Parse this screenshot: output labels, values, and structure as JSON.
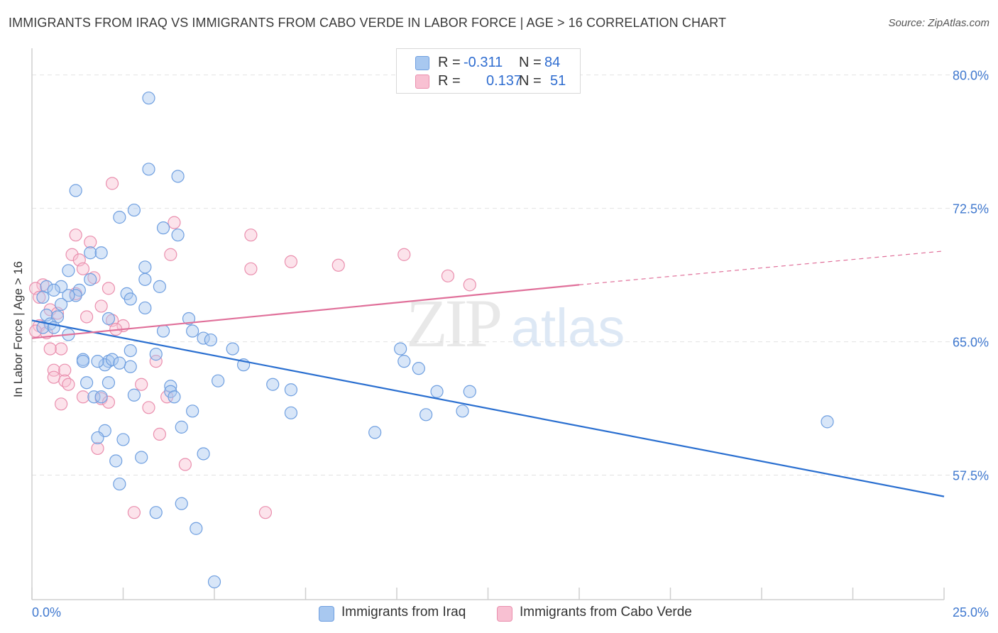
{
  "title": "IMMIGRANTS FROM IRAQ VS IMMIGRANTS FROM CABO VERDE IN LABOR FORCE | AGE > 16 CORRELATION CHART",
  "source": "Source: ZipAtlas.com",
  "watermark": {
    "zip": "ZIP",
    "atlas": "atlas"
  },
  "legend": {
    "rows": [
      {
        "r_label": "R =",
        "r_value": "-0.311",
        "n_label": "N =",
        "n_value": "84",
        "color": "#a8c8f0",
        "border": "#6f9fe0"
      },
      {
        "r_label": "R =",
        "r_value": "0.137",
        "n_label": "N =",
        "n_value": "51",
        "color": "#f8c0d2",
        "border": "#ea8fae"
      }
    ]
  },
  "bottom_legend": {
    "iraq": "Immigrants from Iraq",
    "cabo": "Immigrants from Cabo Verde"
  },
  "chart_data": {
    "type": "scatter",
    "title": "IMMIGRANTS FROM IRAQ VS IMMIGRANTS FROM CABO VERDE IN LABOR FORCE | AGE > 16 CORRELATION CHART",
    "xlabel": "",
    "ylabel": "In Labor Force | Age > 16",
    "xlim": [
      0,
      25
    ],
    "ylim": [
      50.5,
      81.5
    ],
    "x_tick_labels": [
      "0.0%",
      "25.0%"
    ],
    "y_ticks": [
      57.5,
      65.0,
      72.5,
      80.0
    ],
    "y_tick_labels": [
      "57.5%",
      "65.0%",
      "72.5%",
      "80.0%"
    ],
    "grid": true,
    "legend_position": "top-center",
    "colors": {
      "iraq_fill": "#a8c8f0",
      "iraq_stroke": "#6f9fe0",
      "iraq_line": "#2a6fd0",
      "cabo_fill": "#f8c0d2",
      "cabo_stroke": "#ea8fae",
      "cabo_line": "#e0709a"
    },
    "series": [
      {
        "name": "Immigrants from Iraq",
        "trend": {
          "x": [
            0,
            25
          ],
          "y": [
            66.2,
            56.3
          ]
        },
        "points": [
          [
            3.2,
            78.7
          ],
          [
            3.2,
            74.7
          ],
          [
            4.0,
            74.3
          ],
          [
            1.2,
            73.5
          ],
          [
            2.8,
            72.4
          ],
          [
            2.4,
            72.0
          ],
          [
            3.6,
            71.4
          ],
          [
            4.0,
            71.0
          ],
          [
            1.6,
            70.0
          ],
          [
            1.9,
            70.0
          ],
          [
            3.1,
            69.2
          ],
          [
            1.0,
            69.0
          ],
          [
            3.1,
            68.5
          ],
          [
            1.6,
            68.5
          ],
          [
            0.4,
            68.1
          ],
          [
            0.8,
            68.1
          ],
          [
            0.6,
            67.9
          ],
          [
            1.3,
            67.9
          ],
          [
            3.5,
            68.1
          ],
          [
            2.6,
            67.7
          ],
          [
            1.2,
            67.6
          ],
          [
            0.3,
            67.5
          ],
          [
            1.0,
            67.6
          ],
          [
            2.7,
            67.4
          ],
          [
            0.8,
            67.1
          ],
          [
            3.1,
            66.9
          ],
          [
            0.4,
            66.5
          ],
          [
            0.7,
            66.4
          ],
          [
            2.1,
            66.3
          ],
          [
            4.3,
            66.3
          ],
          [
            0.5,
            66.0
          ],
          [
            0.3,
            65.8
          ],
          [
            0.6,
            65.8
          ],
          [
            1.0,
            65.4
          ],
          [
            3.6,
            65.6
          ],
          [
            4.4,
            65.6
          ],
          [
            4.7,
            65.2
          ],
          [
            4.9,
            65.1
          ],
          [
            2.7,
            64.5
          ],
          [
            3.4,
            64.3
          ],
          [
            5.5,
            64.6
          ],
          [
            10.1,
            64.6
          ],
          [
            1.4,
            64.0
          ],
          [
            1.4,
            63.9
          ],
          [
            2.1,
            63.9
          ],
          [
            2.0,
            63.7
          ],
          [
            2.7,
            63.6
          ],
          [
            5.8,
            63.7
          ],
          [
            10.2,
            63.9
          ],
          [
            10.6,
            63.5
          ],
          [
            1.5,
            62.7
          ],
          [
            2.1,
            62.7
          ],
          [
            5.1,
            62.8
          ],
          [
            6.6,
            62.6
          ],
          [
            3.8,
            62.5
          ],
          [
            7.1,
            62.3
          ],
          [
            3.8,
            62.2
          ],
          [
            1.7,
            61.9
          ],
          [
            1.9,
            61.9
          ],
          [
            3.9,
            61.9
          ],
          [
            11.1,
            62.2
          ],
          [
            12.0,
            62.2
          ],
          [
            4.4,
            61.1
          ],
          [
            7.1,
            61.0
          ],
          [
            10.8,
            60.9
          ],
          [
            11.8,
            61.1
          ],
          [
            21.8,
            60.5
          ],
          [
            2.0,
            60.0
          ],
          [
            4.1,
            60.2
          ],
          [
            9.4,
            59.9
          ],
          [
            1.8,
            59.6
          ],
          [
            2.5,
            59.5
          ],
          [
            4.7,
            58.7
          ],
          [
            2.3,
            58.3
          ],
          [
            3.0,
            58.5
          ],
          [
            2.4,
            57.0
          ],
          [
            4.1,
            55.9
          ],
          [
            3.4,
            55.4
          ],
          [
            4.5,
            54.5
          ],
          [
            5.0,
            51.5
          ],
          [
            2.2,
            64.0
          ],
          [
            1.8,
            63.9
          ],
          [
            2.8,
            62.0
          ],
          [
            2.4,
            63.8
          ]
        ]
      },
      {
        "name": "Immigrants from Cabo Verde",
        "trend": {
          "x": [
            0,
            15
          ],
          "y": [
            65.2,
            68.2
          ],
          "dash_to": {
            "x": 25,
            "y": 70.1
          }
        },
        "points": [
          [
            2.2,
            73.9
          ],
          [
            3.9,
            71.7
          ],
          [
            1.2,
            71.0
          ],
          [
            1.6,
            70.6
          ],
          [
            6.0,
            71.0
          ],
          [
            3.8,
            69.9
          ],
          [
            1.1,
            69.9
          ],
          [
            1.3,
            69.6
          ],
          [
            10.2,
            69.9
          ],
          [
            7.1,
            69.5
          ],
          [
            8.4,
            69.3
          ],
          [
            6.0,
            69.1
          ],
          [
            1.4,
            69.1
          ],
          [
            1.7,
            68.6
          ],
          [
            11.4,
            68.7
          ],
          [
            12.0,
            68.2
          ],
          [
            0.3,
            68.2
          ],
          [
            0.1,
            68.0
          ],
          [
            2.1,
            68.0
          ],
          [
            1.2,
            67.7
          ],
          [
            0.2,
            67.5
          ],
          [
            1.9,
            67.0
          ],
          [
            0.5,
            66.8
          ],
          [
            0.7,
            66.6
          ],
          [
            2.2,
            66.2
          ],
          [
            2.5,
            65.9
          ],
          [
            0.2,
            65.9
          ],
          [
            0.1,
            65.6
          ],
          [
            0.4,
            65.5
          ],
          [
            0.8,
            64.6
          ],
          [
            0.5,
            64.6
          ],
          [
            3.4,
            63.9
          ],
          [
            0.6,
            63.4
          ],
          [
            0.9,
            63.4
          ],
          [
            0.6,
            63.0
          ],
          [
            0.9,
            62.8
          ],
          [
            1.0,
            62.6
          ],
          [
            3.0,
            62.6
          ],
          [
            1.4,
            61.9
          ],
          [
            3.7,
            61.9
          ],
          [
            1.9,
            61.8
          ],
          [
            2.1,
            61.6
          ],
          [
            0.8,
            61.5
          ],
          [
            3.2,
            61.3
          ],
          [
            3.5,
            59.8
          ],
          [
            1.8,
            59.0
          ],
          [
            4.2,
            58.1
          ],
          [
            2.8,
            55.4
          ],
          [
            6.4,
            55.4
          ],
          [
            1.5,
            66.4
          ],
          [
            2.3,
            65.7
          ]
        ]
      }
    ]
  }
}
